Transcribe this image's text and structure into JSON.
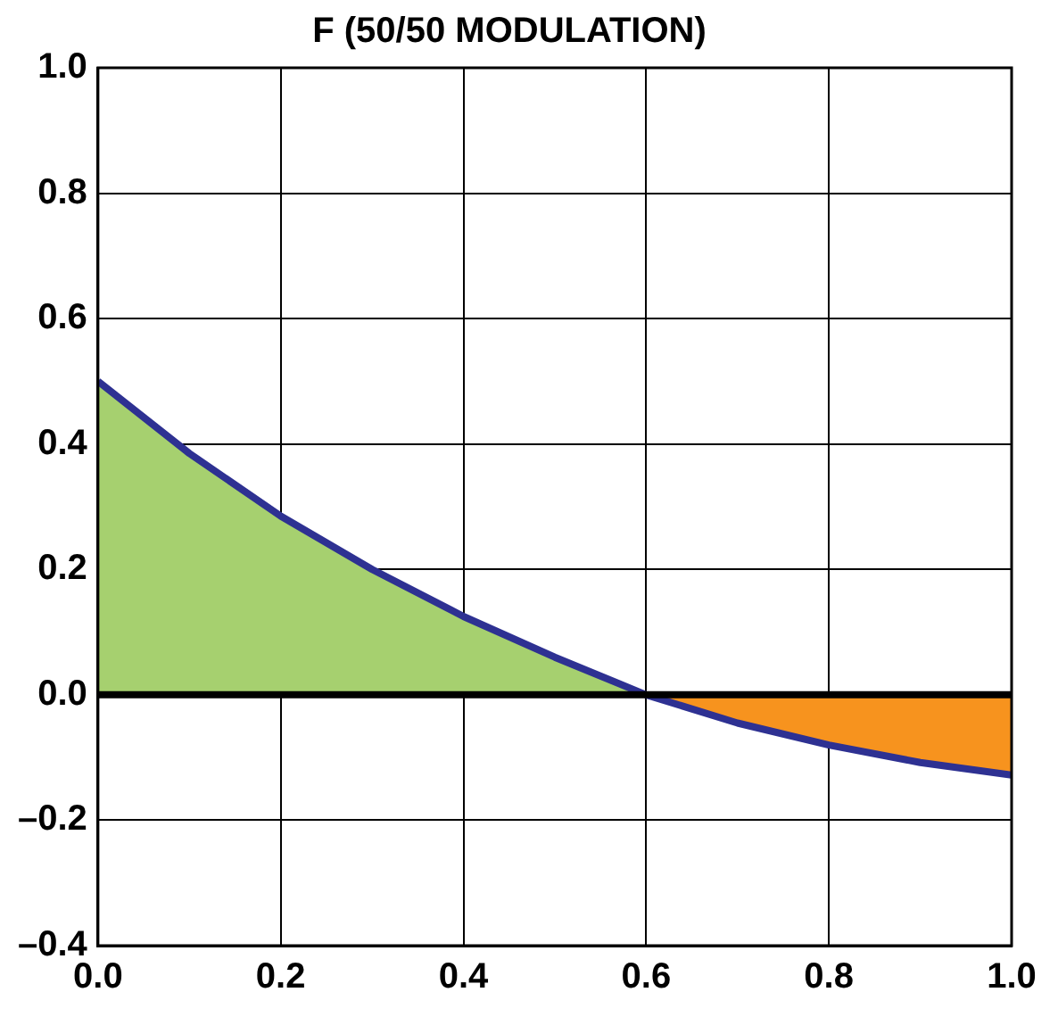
{
  "chart_data": {
    "type": "area",
    "title": "F (50/50 MODULATION)",
    "series": [
      {
        "color": "#a6d06f",
        "x": [
          0,
          0.1,
          0.2,
          0.3,
          0.4,
          0.5,
          0.6
        ],
        "values": [
          0.5,
          0.385,
          0.285,
          0.2,
          0.125,
          0.06,
          0
        ]
      },
      {
        "color": "#f7931e",
        "x": [
          0.6,
          0.7,
          0.8,
          0.9,
          1.0
        ],
        "values": [
          0,
          -0.045,
          -0.08,
          -0.108,
          -0.128
        ]
      },
      {
        "type": "line",
        "color": "#2e3192",
        "x": [
          0,
          0.1,
          0.2,
          0.3,
          0.4,
          0.5,
          0.6,
          0.7,
          0.8,
          0.9,
          1.0
        ],
        "values": [
          0.5,
          0.385,
          0.285,
          0.2,
          0.125,
          0.06,
          0,
          -0.045,
          -0.08,
          -0.108,
          -0.128
        ]
      }
    ],
    "xlim": [
      0,
      1
    ],
    "ylim": [
      -0.4,
      1
    ],
    "xticks": [
      {
        "value": 0,
        "label": "0.0"
      },
      {
        "value": 0.2,
        "label": "0.2"
      },
      {
        "value": 0.4,
        "label": "0.4"
      },
      {
        "value": 0.6,
        "label": "0.6"
      },
      {
        "value": 0.8,
        "label": "0.8"
      },
      {
        "value": 1,
        "label": "1.0"
      }
    ],
    "yticks": [
      {
        "value": -0.4,
        "label": "–0.4"
      },
      {
        "value": -0.2,
        "label": "–0.2"
      },
      {
        "value": 0,
        "label": "0.0"
      },
      {
        "value": 0.2,
        "label": "0.2"
      },
      {
        "value": 0.4,
        "label": "0.4"
      },
      {
        "value": 0.6,
        "label": "0.6"
      },
      {
        "value": 0.8,
        "label": "0.8"
      },
      {
        "value": 1,
        "label": "1.0"
      }
    ],
    "ref_lines": [
      {
        "axis": "y",
        "value": 0,
        "color": "#000000"
      }
    ],
    "grid": true,
    "legend": false,
    "marker": "none"
  }
}
